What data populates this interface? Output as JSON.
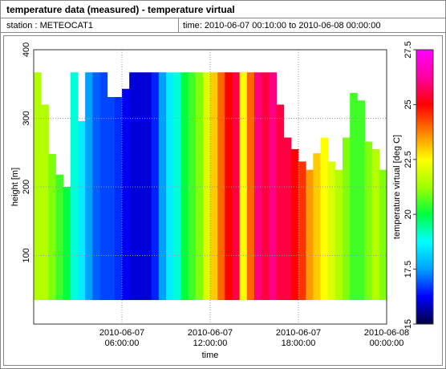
{
  "title": "temperature data (measured) - temperature virtual",
  "station": "station : METEOCAT1",
  "time_range": "time: 2010-06-07 00:10:00 to 2010-06-08 00:00:00",
  "chart_data": {
    "type": "heatmap",
    "xlabel": "time",
    "ylabel": "height [m]",
    "colorbar_label": "temperature virtual [deg C]",
    "x": [
      "2010-06-07 00:15:00",
      "2010-06-07 00:45:00",
      "2010-06-07 01:15:00",
      "2010-06-07 01:45:00",
      "2010-06-07 02:15:00",
      "2010-06-07 02:45:00",
      "2010-06-07 03:15:00",
      "2010-06-07 03:45:00",
      "2010-06-07 04:15:00",
      "2010-06-07 04:45:00",
      "2010-06-07 05:15:00",
      "2010-06-07 05:45:00",
      "2010-06-07 06:15:00",
      "2010-06-07 06:45:00",
      "2010-06-07 07:15:00",
      "2010-06-07 07:45:00",
      "2010-06-07 08:15:00",
      "2010-06-07 08:45:00",
      "2010-06-07 09:15:00",
      "2010-06-07 09:45:00",
      "2010-06-07 10:15:00",
      "2010-06-07 10:45:00",
      "2010-06-07 11:15:00",
      "2010-06-07 11:45:00",
      "2010-06-07 12:15:00",
      "2010-06-07 12:45:00",
      "2010-06-07 13:15:00",
      "2010-06-07 13:45:00",
      "2010-06-07 14:15:00",
      "2010-06-07 14:45:00",
      "2010-06-07 15:15:00",
      "2010-06-07 15:45:00",
      "2010-06-07 16:15:00",
      "2010-06-07 16:45:00",
      "2010-06-07 17:15:00",
      "2010-06-07 17:45:00",
      "2010-06-07 18:15:00",
      "2010-06-07 18:45:00",
      "2010-06-07 19:15:00",
      "2010-06-07 19:45:00",
      "2010-06-07 20:15:00",
      "2010-06-07 20:45:00",
      "2010-06-07 21:15:00",
      "2010-06-07 21:45:00",
      "2010-06-07 22:15:00",
      "2010-06-07 22:45:00",
      "2010-06-07 23:15:00",
      "2010-06-07 23:45:00"
    ],
    "values": [
      21.5,
      21.5,
      21,
      20.5,
      20,
      19,
      18.5,
      17.5,
      17,
      16.8,
      16.8,
      16.6,
      16.2,
      16,
      16,
      16,
      16.5,
      17.5,
      18.5,
      19,
      20,
      20.5,
      21,
      22,
      23,
      24,
      25,
      25.5,
      22.5,
      24,
      26,
      25.5,
      26,
      25.5,
      25.5,
      25,
      24.5,
      23.5,
      23,
      22.5,
      22,
      21.5,
      21,
      20.5,
      20.5,
      21,
      21.5,
      21
    ],
    "top": [
      367,
      320,
      248,
      218,
      200,
      367,
      296,
      367,
      367,
      367,
      331,
      331,
      343,
      367,
      367,
      367,
      367,
      367,
      367,
      367,
      367,
      367,
      367,
      367,
      367,
      367,
      367,
      367,
      367,
      367,
      367,
      367,
      367,
      320,
      272,
      255,
      237,
      225,
      249,
      272,
      237,
      225,
      272,
      337,
      326,
      266,
      255,
      225
    ],
    "base": 35,
    "xlim": [
      "2010-06-07 00:00:00",
      "2010-06-08 00:00:00"
    ],
    "xticks": [
      {
        "value": "2010-06-07 06:00:00",
        "label": "2010-06-07 06:00:00"
      },
      {
        "value": "2010-06-07 12:00:00",
        "label": "2010-06-07 12:00:00"
      },
      {
        "value": "2010-06-07 18:00:00",
        "label": "2010-06-07 18:00:00"
      },
      {
        "value": "2010-06-08 00:00:00",
        "label": "2010-06-08 00:00:00"
      }
    ],
    "ylim": [
      0,
      400
    ],
    "yticks": [
      100,
      200,
      300,
      400
    ],
    "clim": [
      15,
      27.5
    ],
    "cticks": [
      15,
      17.5,
      20,
      22.5,
      25,
      27.5
    ],
    "colormap": [
      "#000040",
      "#0000ff",
      "#00a0ff",
      "#00ffff",
      "#00ff40",
      "#a0ff00",
      "#ffff00",
      "#ff8000",
      "#ff0000",
      "#ff00a0",
      "#ff00ff"
    ],
    "grid": true
  }
}
